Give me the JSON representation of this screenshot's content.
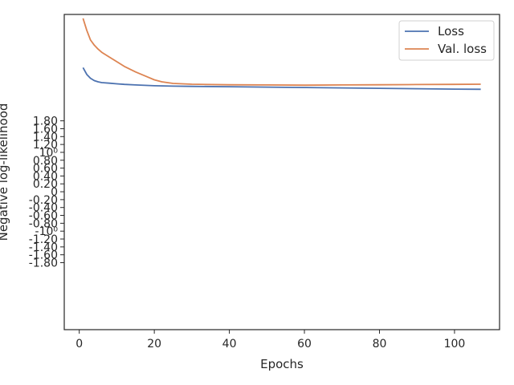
{
  "chart_data": {
    "type": "line",
    "xlabel": "Epochs",
    "ylabel": "Negative log-likelihood",
    "xlim": [
      -4,
      112
    ],
    "ylim_axis_range": [
      -3.5,
      4.5
    ],
    "xticks": [
      0,
      20,
      40,
      60,
      80,
      100
    ],
    "yticks": [
      {
        "value": 1.8,
        "label": "1.80"
      },
      {
        "value": 1.6,
        "label": "1.60"
      },
      {
        "value": 1.4,
        "label": "1.40"
      },
      {
        "value": 1.2,
        "label": "1.20"
      },
      {
        "value": 1.0,
        "label": "10⁰"
      },
      {
        "value": 0.8,
        "label": "0.80"
      },
      {
        "value": 0.6,
        "label": "0.60"
      },
      {
        "value": 0.4,
        "label": "0.40"
      },
      {
        "value": 0.2,
        "label": "0.20"
      },
      {
        "value": 0.0,
        "label": "0"
      },
      {
        "value": -0.2,
        "label": "-0.20"
      },
      {
        "value": -0.4,
        "label": "-0.40"
      },
      {
        "value": -0.6,
        "label": "-0.60"
      },
      {
        "value": -0.8,
        "label": "-0.80"
      },
      {
        "value": -1.0,
        "label": "-10⁰"
      },
      {
        "value": -1.2,
        "label": "-1.20"
      },
      {
        "value": -1.4,
        "label": "-1.40"
      },
      {
        "value": -1.6,
        "label": "-1.60"
      },
      {
        "value": -1.8,
        "label": "-1.80"
      }
    ],
    "legend": "top-right",
    "grid": false,
    "series": [
      {
        "name": "Loss",
        "color": "#4c72b0",
        "x": [
          1,
          2,
          3,
          4,
          5,
          6,
          8,
          10,
          12,
          15,
          20,
          25,
          30,
          40,
          50,
          60,
          70,
          80,
          90,
          100,
          107
        ],
        "y": [
          3.15,
          2.98,
          2.88,
          2.82,
          2.79,
          2.77,
          2.755,
          2.74,
          2.725,
          2.71,
          2.69,
          2.68,
          2.675,
          2.665,
          2.655,
          2.645,
          2.635,
          2.625,
          2.615,
          2.605,
          2.6
        ]
      },
      {
        "name": "Val. loss",
        "color": "#dd8452",
        "x": [
          1,
          2,
          3,
          4,
          5,
          6,
          8,
          10,
          12,
          15,
          18,
          20,
          22,
          25,
          30,
          40,
          50,
          60,
          70,
          80,
          90,
          100,
          107
        ],
        "y": [
          4.4,
          4.1,
          3.85,
          3.72,
          3.62,
          3.54,
          3.42,
          3.3,
          3.18,
          3.04,
          2.92,
          2.84,
          2.79,
          2.75,
          2.73,
          2.715,
          2.71,
          2.705,
          2.71,
          2.715,
          2.72,
          2.725,
          2.73
        ]
      }
    ]
  }
}
